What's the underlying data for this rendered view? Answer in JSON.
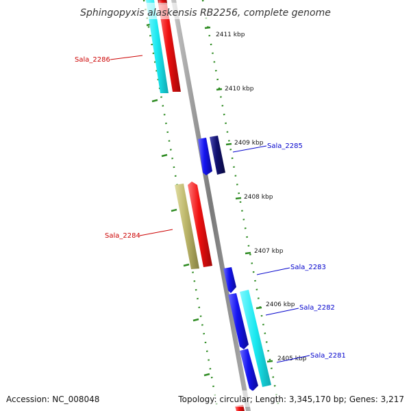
{
  "header": {
    "title": "Sphingopyxis alaskensis RB2256, complete genome"
  },
  "footer": {
    "accession": "Accession: NC_008048",
    "info": "Topology: circular; Length: 3,345,170 bp; Genes: 3,217"
  },
  "ticks": [
    {
      "label": "2411 kbp",
      "pos": 2411
    },
    {
      "label": "2410 kbp",
      "pos": 2410
    },
    {
      "label": "2409 kbp",
      "pos": 2409
    },
    {
      "label": "2408 kbp",
      "pos": 2408
    },
    {
      "label": "2407 kbp",
      "pos": 2407
    },
    {
      "label": "2406 kbp",
      "pos": 2406
    },
    {
      "label": "2405 kbp",
      "pos": 2405
    }
  ],
  "genes": [
    {
      "name": "Sala_2286",
      "strand": "reverse",
      "label_color": "#cc0000"
    },
    {
      "name": "Sala_2285",
      "strand": "forward",
      "label_color": "#0000cc"
    },
    {
      "name": "Sala_2284",
      "strand": "reverse",
      "label_color": "#cc0000"
    },
    {
      "name": "Sala_2283",
      "strand": "forward",
      "label_color": "#0000cc"
    },
    {
      "name": "Sala_2282",
      "strand": "forward",
      "label_color": "#0000cc"
    },
    {
      "name": "Sala_2281",
      "strand": "forward",
      "label_color": "#0000cc"
    }
  ],
  "colors": {
    "cds_forward": "#1414f0",
    "cds_forward_dark": "#10106e",
    "cds_reverse": "#f01010",
    "gene_cyan": "#19e8f0",
    "gene_khaki": "#bdb76b",
    "backbone": "#8c8c8c",
    "tick_green": "#2e8b22"
  }
}
